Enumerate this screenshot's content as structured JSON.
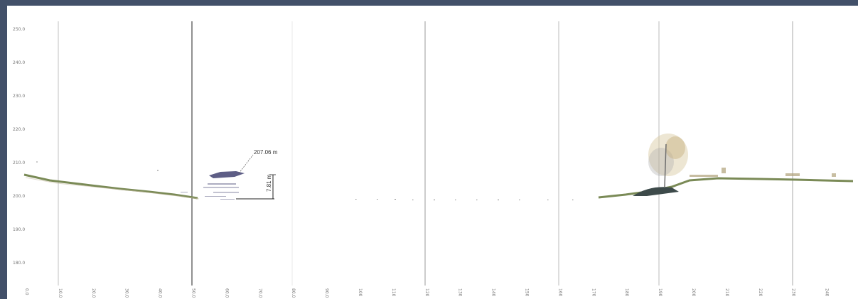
{
  "profile": {
    "y_ticks": [
      "250.0",
      "240.0",
      "230.0",
      "220.0",
      "210.0",
      "200.0",
      "190.0",
      "180.0"
    ],
    "x_ticks": [
      "0.0",
      "10.0",
      "20.0",
      "30.0",
      "40.0",
      "50.0",
      "60.0",
      "70.0",
      "80.0",
      "90.0",
      "100",
      "110",
      "120",
      "130",
      "140",
      "150",
      "160",
      "170",
      "180",
      "190",
      "200",
      "210",
      "220",
      "230",
      "240"
    ],
    "elevation_label": "207.06 m",
    "height_label": "7.81 m"
  },
  "colors": {
    "frame": "#425069",
    "ground": "#7a8a56",
    "object": "#6a6a8a",
    "tree": "#b8a06a",
    "gridline": "#bbbbbb"
  }
}
